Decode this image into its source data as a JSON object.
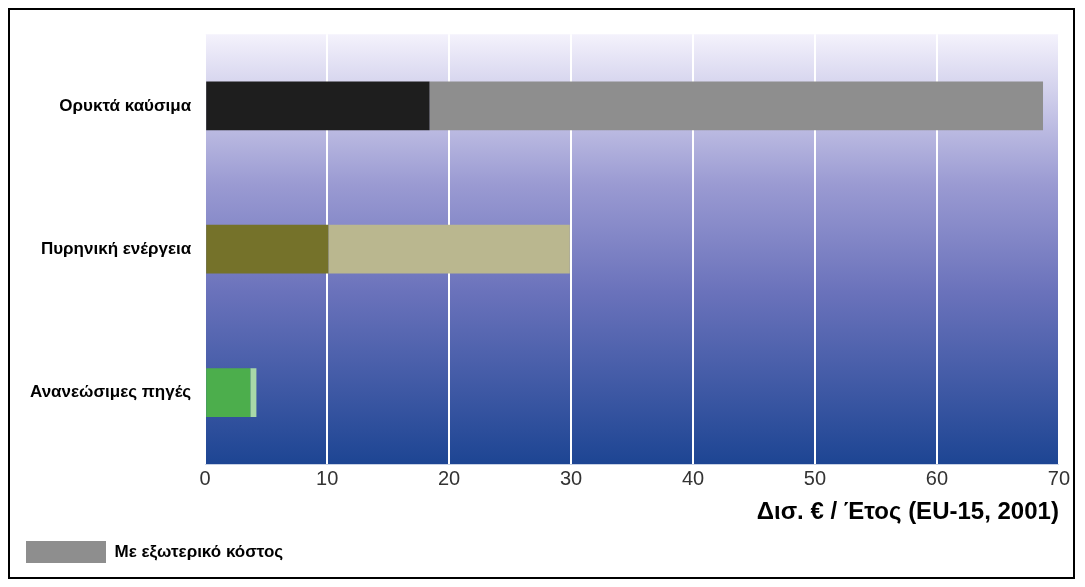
{
  "chart_data": {
    "type": "bar",
    "orientation": "horizontal",
    "stacked": true,
    "categories": [
      "Ορυκτά καύσιμα",
      "Πυρηνική ενέργεια",
      "Ανανεώσιμες πηγές"
    ],
    "series": [
      {
        "colors": [
          "#1e1e1e",
          "#75722a",
          "#4cae4c"
        ],
        "values": [
          18.4,
          10.1,
          3.7
        ]
      },
      {
        "name": "Με εξωτερικό κόστος",
        "colors": [
          "#8e8e8e",
          "#bab78f",
          "#a8d8a8"
        ],
        "values": [
          50.3,
          19.8,
          0.5
        ]
      }
    ],
    "xlabel": "Δισ. € / Έτος (EU-15, 2001)",
    "xlim": [
      0,
      70
    ],
    "xticks": [
      0,
      10,
      20,
      30,
      40,
      50,
      60,
      70
    ],
    "grid": "x",
    "legend": "bottom left"
  }
}
